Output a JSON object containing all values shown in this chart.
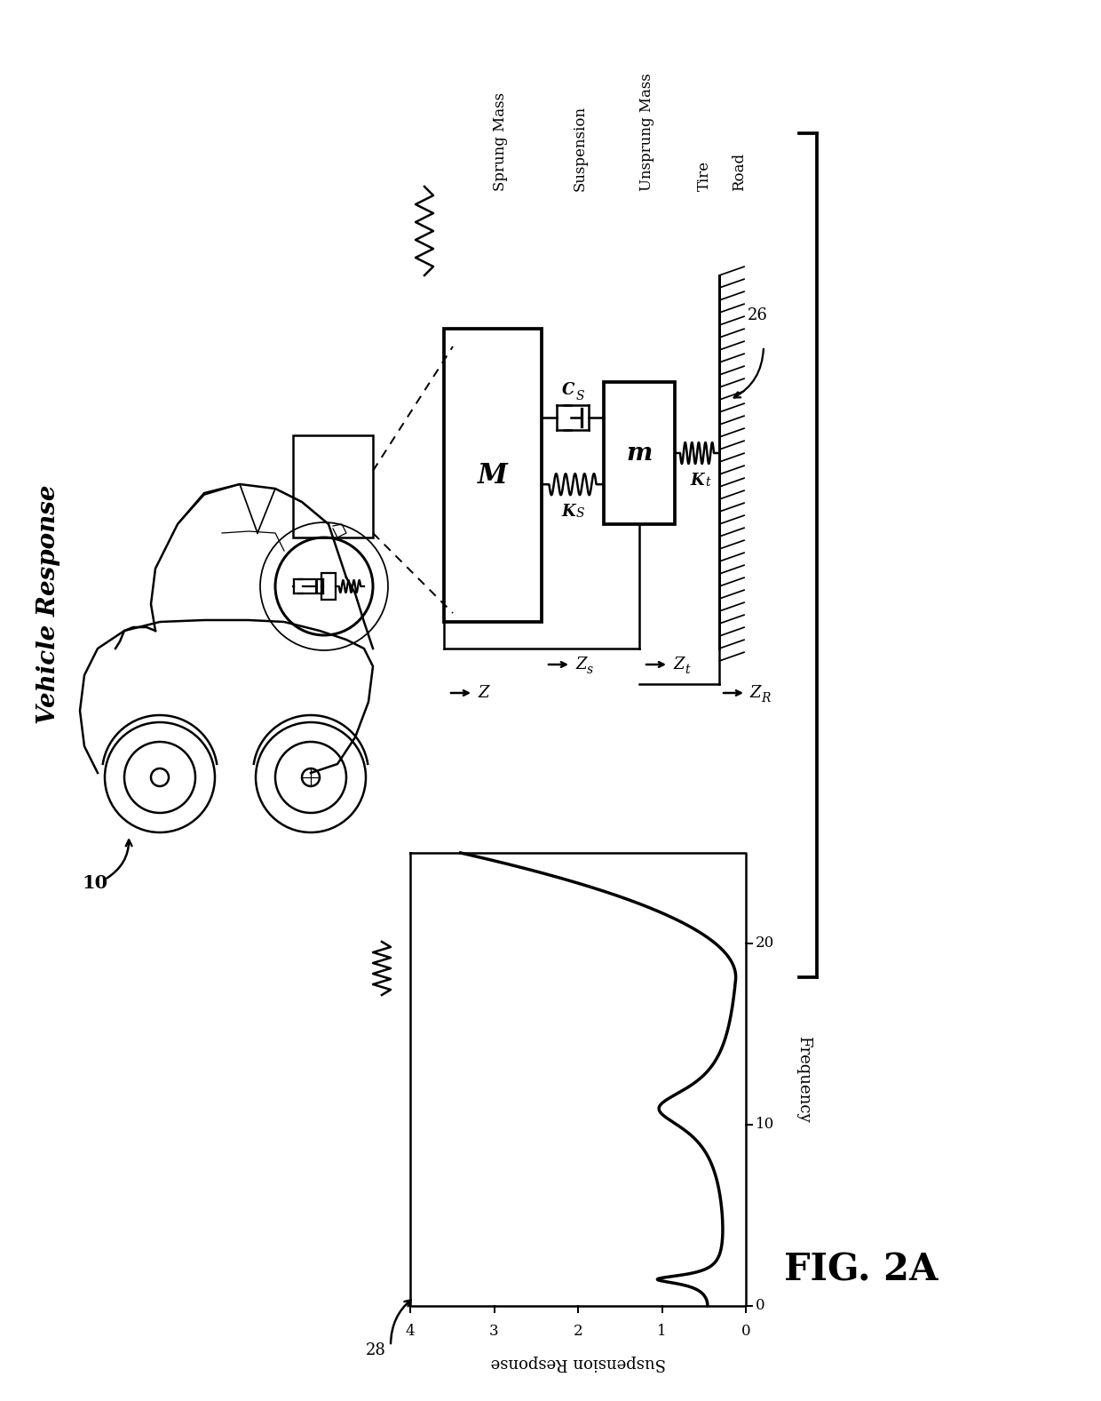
{
  "background_color": "#ffffff",
  "fig_width": 12.4,
  "fig_height": 15.77,
  "vehicle_response_label": "Vehicle Response",
  "fig_label": "FIG. 2A",
  "ref_10": "10",
  "ref_26": "26",
  "ref_28": "28",
  "sprung_mass_label": "Sprung Mass",
  "suspension_label": "Suspension",
  "unsprung_mass_label": "Unsprung Mass",
  "tire_label": "Tire",
  "road_label": "Road",
  "M_label": "M",
  "m_label": "m",
  "Cs_label": "C",
  "Cs_sub": "S",
  "Ks_label": "K",
  "Ks_sub": "S",
  "Kt_label": "K",
  "Kt_sub": "t",
  "Z_label": "Z",
  "Zs_label": "Z",
  "Zs_sub": "s",
  "Zt_label": "Z",
  "Zt_sub": "t",
  "ZR_label": "Z",
  "ZR_sub": "R",
  "x_axis_label": "Frequency",
  "y_axis_label": "Suspension Response",
  "x_ticks": [
    0,
    10,
    20
  ],
  "y_ticks": [
    0,
    1,
    2,
    3,
    4
  ],
  "line_color": "#000000",
  "line_width": 2.5
}
